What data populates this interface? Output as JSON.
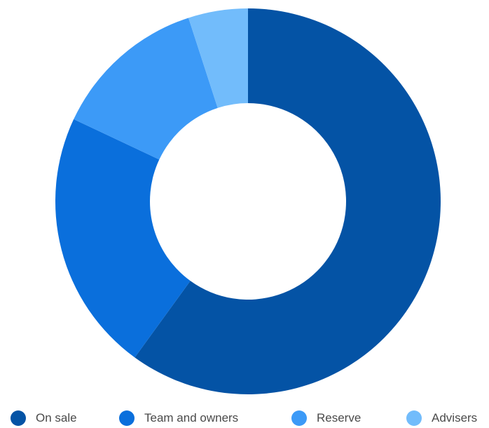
{
  "chart_data": {
    "type": "pie",
    "title": "",
    "categories": [
      "On sale",
      "Team and owners",
      "Reserve",
      "Advisers"
    ],
    "values": [
      60,
      22,
      13,
      5
    ],
    "colors": [
      "#0453a5",
      "#0a6fdc",
      "#3c9af7",
      "#72bcfb"
    ],
    "donut": true,
    "start": "top, clockwise",
    "legend": "bottom"
  }
}
